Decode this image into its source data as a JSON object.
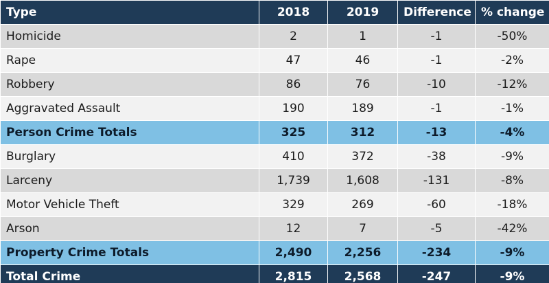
{
  "table": {
    "headers": [
      "Type",
      "2018",
      "2019",
      "Difference",
      "% change"
    ],
    "rows": [
      {
        "type": "Homicide",
        "y2018": "2",
        "y2019": "1",
        "diff": "-1",
        "pct": "-50%"
      },
      {
        "type": "Rape",
        "y2018": "47",
        "y2019": "46",
        "diff": "-1",
        "pct": "-2%"
      },
      {
        "type": "Robbery",
        "y2018": "86",
        "y2019": "76",
        "diff": "-10",
        "pct": "-12%"
      },
      {
        "type": "Aggravated Assault",
        "y2018": "190",
        "y2019": "189",
        "diff": "-1",
        "pct": "-1%"
      },
      {
        "type": "Person Crime Totals",
        "y2018": "325",
        "y2019": "312",
        "diff": "-13",
        "pct": "-4%"
      },
      {
        "type": "Burglary",
        "y2018": "410",
        "y2019": "372",
        "diff": "-38",
        "pct": "-9%"
      },
      {
        "type": "Larceny",
        "y2018": "1,739",
        "y2019": "1,608",
        "diff": "-131",
        "pct": "-8%"
      },
      {
        "type": "Motor Vehicle Theft",
        "y2018": "329",
        "y2019": "269",
        "diff": "-60",
        "pct": "-18%"
      },
      {
        "type": "Arson",
        "y2018": "12",
        "y2019": "7",
        "diff": "-5",
        "pct": "-42%"
      },
      {
        "type": "Property Crime Totals",
        "y2018": "2,490",
        "y2019": "2,256",
        "diff": "-234",
        "pct": "-9%"
      },
      {
        "type": "Total Crime",
        "y2018": "2,815",
        "y2019": "2,568",
        "diff": "-247",
        "pct": "-9%"
      }
    ]
  },
  "colors": {
    "header_bg": "#1f3b57",
    "row_odd": "#d9d9d9",
    "row_even": "#f2f2f2",
    "subtotal_bg": "#7fc0e4",
    "grand_total_bg": "#1f3b57"
  }
}
